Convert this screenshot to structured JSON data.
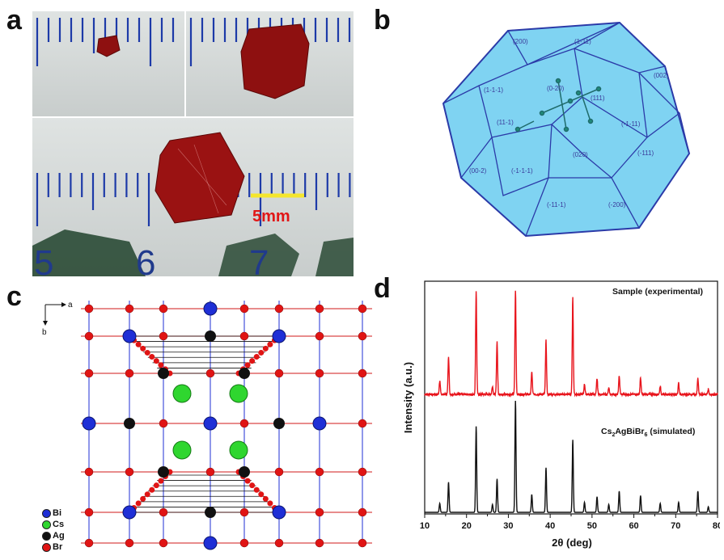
{
  "figure": {
    "panels": {
      "a": {
        "letter": "a",
        "scale_label": "5mm",
        "ruler_numbers": [
          "5",
          "6",
          "7"
        ]
      },
      "b": {
        "letter": "b",
        "facets": [
          "(200)",
          "(1-11)",
          "(111)",
          "(002)",
          "(0-20)",
          "(1-1-1)",
          "(11-1)",
          "(-1-11)",
          "(020)",
          "(-111)",
          "(00-2)",
          "(-1-1-1)",
          "(-11-1)",
          "(-200)"
        ]
      },
      "c": {
        "letter": "c",
        "axis_a": "a",
        "axis_b": "b",
        "legend": [
          {
            "label": "Bi",
            "color": "#1f2fd6"
          },
          {
            "label": "Cs",
            "color": "#2fd62f"
          },
          {
            "label": "Ag",
            "color": "#111111"
          },
          {
            "label": "Br",
            "color": "#e01414"
          }
        ]
      },
      "d": {
        "letter": "d"
      }
    },
    "colors": {
      "crystal": "#8e1010",
      "facet_fill": "#7fd3f2",
      "facet_edge": "#2b3aa8",
      "experimental": "#e8141c",
      "simulated": "#111111"
    }
  },
  "chart_data": {
    "type": "line",
    "xlabel": "2θ (deg)",
    "ylabel": "Intensity (a.u.)",
    "xlim": [
      10,
      80
    ],
    "xticks": [
      10,
      20,
      30,
      40,
      50,
      60,
      70,
      80
    ],
    "grid": false,
    "series": [
      {
        "name": "Sample (experimental)",
        "color": "#e8141c",
        "peaks": [
          [
            13.6,
            0.13
          ],
          [
            15.7,
            0.37
          ],
          [
            22.3,
            1.0
          ],
          [
            26.2,
            0.08
          ],
          [
            27.3,
            0.51
          ],
          [
            31.7,
            1.0
          ],
          [
            35.6,
            0.22
          ],
          [
            39.0,
            0.52
          ],
          [
            45.4,
            0.93
          ],
          [
            48.2,
            0.1
          ],
          [
            51.2,
            0.15
          ],
          [
            54.0,
            0.06
          ],
          [
            56.5,
            0.18
          ],
          [
            61.6,
            0.16
          ],
          [
            66.3,
            0.08
          ],
          [
            70.7,
            0.11
          ],
          [
            75.3,
            0.15
          ],
          [
            77.8,
            0.05
          ]
        ]
      },
      {
        "name": "Cs2AgBiBr6 (simulated)",
        "color": "#111111",
        "peaks": [
          [
            13.6,
            0.08
          ],
          [
            15.7,
            0.27
          ],
          [
            22.3,
            0.77
          ],
          [
            26.2,
            0.07
          ],
          [
            27.3,
            0.3
          ],
          [
            31.7,
            1.0
          ],
          [
            35.6,
            0.16
          ],
          [
            39.0,
            0.4
          ],
          [
            45.4,
            0.65
          ],
          [
            48.2,
            0.09
          ],
          [
            51.2,
            0.14
          ],
          [
            54.0,
            0.07
          ],
          [
            56.5,
            0.19
          ],
          [
            61.6,
            0.15
          ],
          [
            66.3,
            0.08
          ],
          [
            70.7,
            0.09
          ],
          [
            75.3,
            0.19
          ],
          [
            77.8,
            0.05
          ]
        ]
      }
    ]
  }
}
